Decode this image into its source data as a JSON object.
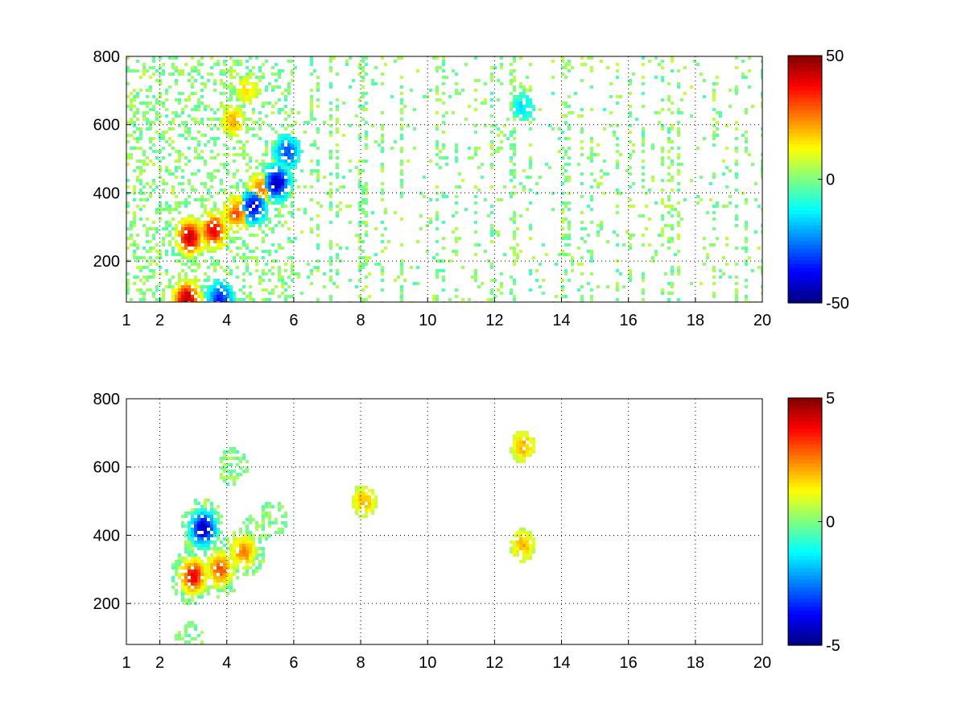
{
  "chart_data": [
    {
      "type": "heatmap",
      "title": "",
      "xlabel": "",
      "ylabel": "",
      "xlim": [
        1,
        20
      ],
      "ylim": [
        80,
        800
      ],
      "x_ticks": [
        1,
        2,
        4,
        6,
        8,
        10,
        12,
        14,
        16,
        18,
        20
      ],
      "x_tick_labels": [
        "1",
        "2",
        "4",
        "6",
        "8",
        "10",
        "12",
        "14",
        "16",
        "18",
        "20"
      ],
      "y_ticks": [
        200,
        400,
        600,
        800
      ],
      "y_tick_labels": [
        "200",
        "400",
        "600",
        "800"
      ],
      "grid": true,
      "colormap": "jet",
      "colorbar": {
        "min": -50,
        "max": 50,
        "ticks": [
          50,
          0,
          -50
        ],
        "tick_labels": [
          "50",
          "0",
          "-50"
        ]
      },
      "features": [
        {
          "x": 2.9,
          "y": 270,
          "value": 45
        },
        {
          "x": 3.6,
          "y": 290,
          "value": 40
        },
        {
          "x": 4.3,
          "y": 340,
          "value": 30
        },
        {
          "x": 5.0,
          "y": 410,
          "value": 25
        },
        {
          "x": 4.8,
          "y": 360,
          "value": -40
        },
        {
          "x": 5.5,
          "y": 430,
          "value": -45
        },
        {
          "x": 5.8,
          "y": 520,
          "value": -30
        },
        {
          "x": 4.2,
          "y": 610,
          "value": 20
        },
        {
          "x": 4.6,
          "y": 700,
          "value": 15
        },
        {
          "x": 2.8,
          "y": 90,
          "value": 45
        },
        {
          "x": 3.8,
          "y": 90,
          "value": -35
        },
        {
          "x": 12.85,
          "y": 650,
          "value": -15
        }
      ]
    },
    {
      "type": "heatmap",
      "title": "",
      "xlabel": "",
      "ylabel": "",
      "xlim": [
        1,
        20
      ],
      "ylim": [
        80,
        800
      ],
      "x_ticks": [
        1,
        2,
        4,
        6,
        8,
        10,
        12,
        14,
        16,
        18,
        20
      ],
      "x_tick_labels": [
        "1",
        "2",
        "4",
        "6",
        "8",
        "10",
        "12",
        "14",
        "16",
        "18",
        "20"
      ],
      "y_ticks": [
        200,
        400,
        600,
        800
      ],
      "y_tick_labels": [
        "200",
        "400",
        "600",
        "800"
      ],
      "grid": true,
      "colormap": "jet",
      "colorbar": {
        "min": -5,
        "max": 5,
        "ticks": [
          5,
          0,
          -5
        ],
        "tick_labels": [
          "5",
          "0",
          "-5"
        ]
      },
      "features": [
        {
          "x": 3.0,
          "y": 280,
          "value": 4
        },
        {
          "x": 3.8,
          "y": 300,
          "value": 3
        },
        {
          "x": 4.5,
          "y": 350,
          "value": 2.5
        },
        {
          "x": 3.3,
          "y": 420,
          "value": -4.5
        },
        {
          "x": 4.8,
          "y": 400,
          "value": 0.5
        },
        {
          "x": 5.4,
          "y": 450,
          "value": -0.5
        },
        {
          "x": 4.2,
          "y": 600,
          "value": 0.5
        },
        {
          "x": 2.9,
          "y": 90,
          "value": 0.5
        },
        {
          "x": 12.85,
          "y": 660,
          "value": 2
        },
        {
          "x": 12.85,
          "y": 370,
          "value": 2
        },
        {
          "x": 8.1,
          "y": 500,
          "value": 2
        }
      ]
    }
  ]
}
